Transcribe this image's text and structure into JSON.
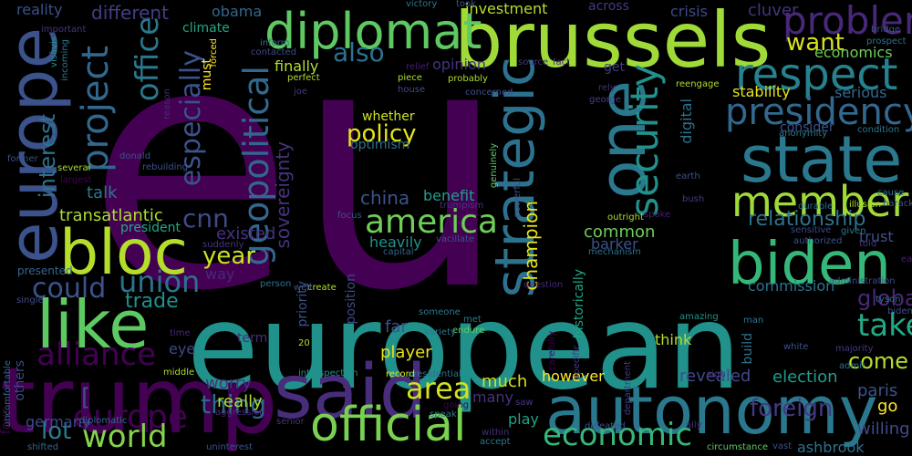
{
  "words": [
    {
      "text": "eu",
      "color": "#440154"
    },
    {
      "text": "european",
      "color": "#21918c"
    },
    {
      "text": "europe",
      "color": "#3b528b"
    },
    {
      "text": "brussels",
      "color": "#a0da39"
    },
    {
      "text": "trump",
      "color": "#440154"
    },
    {
      "text": "autonomy",
      "color": "#2a788e"
    },
    {
      "text": "state",
      "color": "#2a788e"
    },
    {
      "text": "biden",
      "color": "#35b779"
    },
    {
      "text": "said",
      "color": "#472d7b"
    },
    {
      "text": "bloc",
      "color": "#b5de2b"
    },
    {
      "text": "like",
      "color": "#5ec962"
    },
    {
      "text": "diplomat",
      "color": "#5ec962"
    },
    {
      "text": "one",
      "color": "#2a788e"
    },
    {
      "text": "strategic",
      "color": "#2c728e"
    },
    {
      "text": "official",
      "color": "#7ad151"
    },
    {
      "text": "respect",
      "color": "#26828e"
    },
    {
      "text": "member",
      "color": "#a0da39"
    },
    {
      "text": "problem",
      "color": "#482878"
    },
    {
      "text": "presidency",
      "color": "#31688e"
    },
    {
      "text": "america",
      "color": "#6ece58"
    },
    {
      "text": "security",
      "color": "#21918c"
    },
    {
      "text": "project",
      "color": "#31688e"
    },
    {
      "text": "geopolitical",
      "color": "#31688e"
    },
    {
      "text": "europe",
      "color": "#440154"
    },
    {
      "text": "economic",
      "color": "#35b779"
    },
    {
      "text": "world",
      "color": "#84d44b"
    },
    {
      "text": "alliance",
      "color": "#440154"
    },
    {
      "text": "union",
      "color": "#2c728e"
    },
    {
      "text": "area",
      "color": "#d2e21b"
    },
    {
      "text": "take",
      "color": "#22a884"
    },
    {
      "text": "could",
      "color": "#3b528b"
    },
    {
      "text": "office",
      "color": "#2a788e"
    },
    {
      "text": "especially",
      "color": "#3b528b"
    },
    {
      "text": "interest",
      "color": "#2c728e"
    },
    {
      "text": "cnn",
      "color": "#3e4a89"
    },
    {
      "text": "year",
      "color": "#cae11f"
    },
    {
      "text": "policy",
      "color": "#e5e419"
    },
    {
      "text": "want",
      "color": "#d8e219"
    },
    {
      "text": "thing",
      "color": "#31688e"
    },
    {
      "text": "relationship",
      "color": "#2c728e"
    },
    {
      "text": "foreign",
      "color": "#443983"
    },
    {
      "text": "lot",
      "color": "#287c8e"
    },
    {
      "text": "come",
      "color": "#b5de2b"
    },
    {
      "text": "global",
      "color": "#482878"
    },
    {
      "text": "also",
      "color": "#2c728e"
    },
    {
      "text": "champion",
      "color": "#e5e419"
    },
    {
      "text": "sovereignty",
      "color": "#46337e"
    },
    {
      "text": "transatlantic",
      "color": "#addc30"
    },
    {
      "text": "china",
      "color": "#3b528b"
    },
    {
      "text": "common",
      "color": "#6ece58"
    },
    {
      "text": "different",
      "color": "#433e85"
    },
    {
      "text": "trade",
      "color": "#21918c"
    },
    {
      "text": "talk",
      "color": "#2a788e"
    },
    {
      "text": "existed",
      "color": "#46337e"
    },
    {
      "text": "election",
      "color": "#1f9e89"
    },
    {
      "text": "heavily",
      "color": "#21918c"
    },
    {
      "text": "barker",
      "color": "#3b528b"
    },
    {
      "text": "player",
      "color": "#e5e419"
    },
    {
      "text": "paris",
      "color": "#3b528b"
    },
    {
      "text": "worry",
      "color": "#46337e"
    },
    {
      "text": "really",
      "color": "#addc30"
    },
    {
      "text": "germany",
      "color": "#3e4a89"
    },
    {
      "text": "revealed",
      "color": "#3e4a89"
    },
    {
      "text": "commission",
      "color": "#2c728e"
    },
    {
      "text": "many",
      "color": "#46337e"
    },
    {
      "text": "much",
      "color": "#d2e21b"
    },
    {
      "text": "however",
      "color": "#fde725"
    },
    {
      "text": "ashbrook",
      "color": "#2c728e"
    },
    {
      "text": "willing",
      "color": "#3e4a89"
    },
    {
      "text": "digital",
      "color": "#2c728e"
    },
    {
      "text": "investment",
      "color": "#b5de2b"
    },
    {
      "text": "finally",
      "color": "#b5de2b"
    },
    {
      "text": "cluver",
      "color": "#46337e"
    },
    {
      "text": "economics",
      "color": "#6ece58"
    },
    {
      "text": "stability",
      "color": "#e5e419"
    },
    {
      "text": "serious",
      "color": "#31688e"
    },
    {
      "text": "reality",
      "color": "#3b528b"
    },
    {
      "text": "obama",
      "color": "#31688e"
    },
    {
      "text": "climate",
      "color": "#22a884"
    },
    {
      "text": "across",
      "color": "#443983"
    },
    {
      "text": "crisis",
      "color": "#3e4a89"
    },
    {
      "text": "opinion",
      "color": "#46337e"
    },
    {
      "text": "whether",
      "color": "#d2e21b"
    },
    {
      "text": "benefit",
      "color": "#1f9e89"
    },
    {
      "text": "president",
      "color": "#22a884"
    },
    {
      "text": "think",
      "color": "#b5de2b"
    },
    {
      "text": "trust",
      "color": "#3b528b"
    },
    {
      "text": "go",
      "color": "#fde725"
    },
    {
      "text": "eye",
      "color": "#3e4a89"
    },
    {
      "text": "four",
      "color": "#440154"
    },
    {
      "text": "others",
      "color": "#3e4a89"
    },
    {
      "text": "build",
      "color": "#2c728e"
    },
    {
      "text": "term",
      "color": "#472d7b"
    },
    {
      "text": "historically",
      "color": "#20a486"
    },
    {
      "text": "consider",
      "color": "#3b528b"
    },
    {
      "text": "optimism",
      "color": "#2c728e"
    },
    {
      "text": "way",
      "color": "#482878"
    },
    {
      "text": "far",
      "color": "#3b528b"
    },
    {
      "text": "position",
      "color": "#3e4a89"
    },
    {
      "text": "get",
      "color": "#443983"
    },
    {
      "text": "priority",
      "color": "#3b528b"
    },
    {
      "text": "must",
      "color": "#fde725"
    },
    {
      "text": "forced",
      "color": "#fde725"
    },
    {
      "text": "play",
      "color": "#20a486"
    },
    {
      "text": "east",
      "color": "#481f70"
    },
    {
      "text": "presented",
      "color": "#31688e"
    },
    {
      "text": "single",
      "color": "#3e4a89"
    },
    {
      "text": "uncomfortable",
      "color": "#31688e"
    },
    {
      "text": "diplomatic",
      "color": "#31688e"
    },
    {
      "text": "aggression",
      "color": "#482878"
    },
    {
      "text": "senior",
      "color": "#46337e"
    },
    {
      "text": "shifted",
      "color": "#31688e"
    },
    {
      "text": "uninterest",
      "color": "#3b528b"
    },
    {
      "text": "introspection",
      "color": "#21918c"
    },
    {
      "text": "record",
      "color": "#e5e419"
    },
    {
      "text": "presidential",
      "color": "#2c728e"
    },
    {
      "text": "speak",
      "color": "#2a788e"
    },
    {
      "text": "going",
      "color": "#440154"
    },
    {
      "text": "within",
      "color": "#472d7b"
    },
    {
      "text": "accept",
      "color": "#2a788e"
    },
    {
      "text": "saw",
      "color": "#443983"
    },
    {
      "text": "defeated",
      "color": "#3b528b"
    },
    {
      "text": "ally",
      "color": "#482878"
    },
    {
      "text": "vast",
      "color": "#3b528b"
    },
    {
      "text": "circumstance",
      "color": "#5ec962"
    },
    {
      "text": "department",
      "color": "#443983"
    },
    {
      "text": "white",
      "color": "#3b528b"
    },
    {
      "text": "majority",
      "color": "#443983"
    },
    {
      "text": "admit",
      "color": "#2c728e"
    },
    {
      "text": "sigh",
      "color": "#46337e"
    },
    {
      "text": "amazing",
      "color": "#21918c"
    },
    {
      "text": "specific",
      "color": "#443983"
    },
    {
      "text": "carefully",
      "color": "#440154"
    },
    {
      "text": "met",
      "color": "#2a788e"
    },
    {
      "text": "endure",
      "color": "#5ec962"
    },
    {
      "text": "someone",
      "color": "#2a788e"
    },
    {
      "text": "variety",
      "color": "#2a788e"
    },
    {
      "text": "20",
      "color": "#b5de2b"
    },
    {
      "text": "question",
      "color": "#482878"
    },
    {
      "text": "create",
      "color": "#addc30"
    },
    {
      "text": "well",
      "color": "#3b528b"
    },
    {
      "text": "person",
      "color": "#2c728e"
    },
    {
      "text": "time",
      "color": "#482878"
    },
    {
      "text": "middle",
      "color": "#addc30"
    },
    {
      "text": "suddenly",
      "color": "#46337e"
    },
    {
      "text": "capital",
      "color": "#31688e"
    },
    {
      "text": "vacillate",
      "color": "#3b528b"
    },
    {
      "text": "mechanism",
      "color": "#2c728e"
    },
    {
      "text": "outright",
      "color": "#addc30"
    },
    {
      "text": "spoke",
      "color": "#481f70"
    },
    {
      "text": "focus",
      "color": "#3b528b"
    },
    {
      "text": "trumpism",
      "color": "#46337e"
    },
    {
      "text": "powerful",
      "color": "#3b528b"
    },
    {
      "text": "genuinely",
      "color": "#5ec962"
    },
    {
      "text": "bush",
      "color": "#443983"
    },
    {
      "text": "earth",
      "color": "#3b528b"
    },
    {
      "text": "durable",
      "color": "#2c728e"
    },
    {
      "text": "illusion",
      "color": "#addc30"
    },
    {
      "text": "cause",
      "color": "#2c728e"
    },
    {
      "text": "barack",
      "color": "#3b528b"
    },
    {
      "text": "sensitive",
      "color": "#3e4a89"
    },
    {
      "text": "given",
      "color": "#2a788e"
    },
    {
      "text": "authorized",
      "color": "#3b528b"
    },
    {
      "text": "told",
      "color": "#46337e"
    },
    {
      "text": "administration",
      "color": "#3e4a89"
    },
    {
      "text": "tyson",
      "color": "#2c728e"
    },
    {
      "text": "bidens",
      "color": "#3b528b"
    },
    {
      "text": "man",
      "color": "#2a788e"
    },
    {
      "text": "condition",
      "color": "#2a788e"
    },
    {
      "text": "anonymity",
      "color": "#2a788e"
    },
    {
      "text": "reengage",
      "color": "#addc30"
    },
    {
      "text": "rely",
      "color": "#472d7b"
    },
    {
      "text": "george",
      "color": "#433e85"
    },
    {
      "text": "source",
      "color": "#46337e"
    },
    {
      "text": "fact",
      "color": "#472d7b"
    },
    {
      "text": "piece",
      "color": "#addc30"
    },
    {
      "text": "house",
      "color": "#3e4a89"
    },
    {
      "text": "relief",
      "color": "#481f70"
    },
    {
      "text": "probably",
      "color": "#addc30"
    },
    {
      "text": "concerned",
      "color": "#3b528b"
    },
    {
      "text": "victory",
      "color": "#2a788e"
    },
    {
      "text": "took",
      "color": "#3b528b"
    },
    {
      "text": "inform",
      "color": "#2c728e"
    },
    {
      "text": "contacted",
      "color": "#3e4a89"
    },
    {
      "text": "perfect",
      "color": "#addc30"
    },
    {
      "text": "joe",
      "color": "#46337e"
    },
    {
      "text": "reason",
      "color": "#482878"
    },
    {
      "text": "donald",
      "color": "#3b528b"
    },
    {
      "text": "rebuilding",
      "color": "#3b528b"
    },
    {
      "text": "former",
      "color": "#3b528b"
    },
    {
      "text": "several",
      "color": "#addc30"
    },
    {
      "text": "largest",
      "color": "#440154"
    },
    {
      "text": "important",
      "color": "#46337e"
    },
    {
      "text": "visàvis",
      "color": "#21918c"
    },
    {
      "text": "incoming",
      "color": "#2a788e"
    },
    {
      "text": "bridge",
      "color": "#3b528b"
    },
    {
      "text": "prospect",
      "color": "#2c728e"
    },
    {
      "text": "[",
      "color": "#3b528b"
    }
  ]
}
